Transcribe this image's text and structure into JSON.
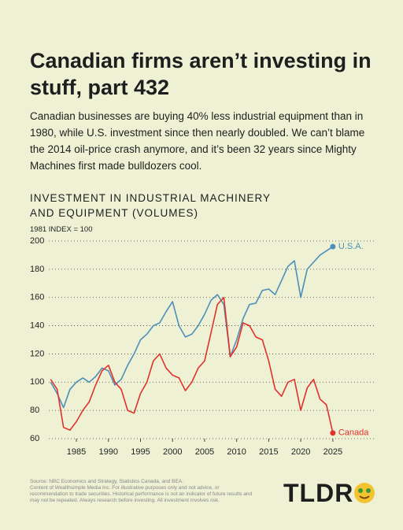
{
  "chart_data": {
    "type": "line",
    "title": "Canadian firms aren’t investing in stuff, part 432",
    "subtitle": "Canadian businesses are buying 40% less industrial equipment than in 1980, while U.S. investment since then nearly doubled. We can’t blame the 2014 oil-price crash anymore, and it’s been 32 years since Mighty Machines first made bulldozers cool.",
    "chart_title": "INVESTMENT IN INDUSTRIAL MACHINERY AND EQUIPMENT (VOLUMES)",
    "y_label": "1981 INDEX = 100",
    "x": [
      1981,
      1982,
      1983,
      1984,
      1985,
      1986,
      1987,
      1988,
      1989,
      1990,
      1991,
      1992,
      1993,
      1994,
      1995,
      1996,
      1997,
      1998,
      1999,
      2000,
      2001,
      2002,
      2003,
      2004,
      2005,
      2006,
      2007,
      2008,
      2009,
      2010,
      2011,
      2012,
      2013,
      2014,
      2015,
      2016,
      2017,
      2018,
      2019,
      2020,
      2021,
      2022,
      2023,
      2024,
      2025
    ],
    "series": [
      {
        "name": "U.S.A.",
        "color": "#4d8fba",
        "values": [
          100,
          92,
          82,
          95,
          100,
          103,
          100,
          104,
          110,
          108,
          98,
          102,
          112,
          120,
          130,
          134,
          140,
          142,
          150,
          157,
          140,
          132,
          134,
          140,
          148,
          158,
          162,
          155,
          118,
          130,
          145,
          155,
          156,
          165,
          166,
          162,
          172,
          182,
          186,
          160,
          180,
          185,
          190,
          193,
          196
        ]
      },
      {
        "name": "Canada",
        "color": "#e0322b",
        "values": [
          102,
          95,
          68,
          66,
          72,
          80,
          86,
          98,
          108,
          112,
          100,
          95,
          80,
          78,
          92,
          100,
          115,
          120,
          110,
          105,
          103,
          94,
          100,
          110,
          115,
          135,
          155,
          160,
          118,
          125,
          142,
          140,
          132,
          130,
          115,
          95,
          90,
          100,
          102,
          80,
          96,
          102,
          88,
          84,
          64
        ]
      }
    ],
    "xlim": [
      1980.7,
      2031.4
    ],
    "ylim": [
      60,
      200
    ],
    "xticks": [
      1985,
      1990,
      1995,
      2000,
      2005,
      2010,
      2015,
      2020,
      2025
    ],
    "yticks": [
      60,
      80,
      100,
      120,
      140,
      160,
      180,
      200
    ],
    "grid": true,
    "source": "Source: NBC Economics and Strategy, Statistics Canada, and BEA.",
    "disclaimer": "Content of Wealthsimple Media Inc. For illustrative purposes only and not advice, or recommendation to trade securities. Historical performance is not an indicator of future results and may not be repeated. Always research before investing. All investment involves risk.",
    "brand": "TLDR"
  }
}
